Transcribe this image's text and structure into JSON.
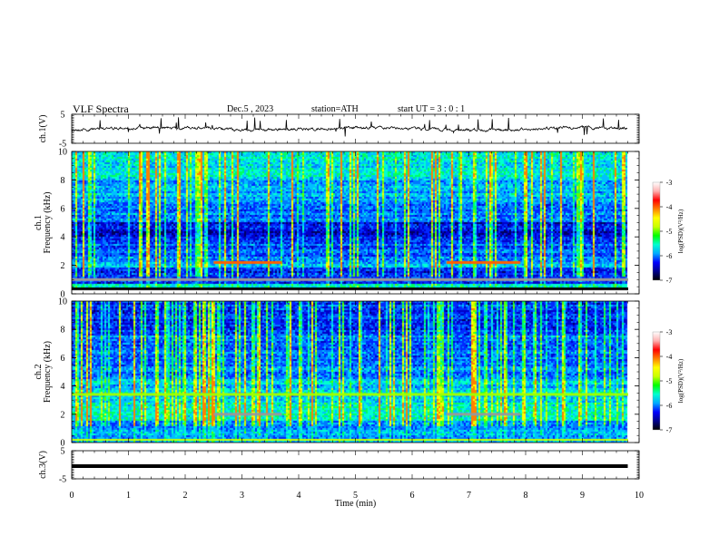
{
  "header": {
    "title": "VLF  Spectra",
    "date": "Dec.5  , 2023",
    "station": "station=ATH",
    "start": "start  UT  =    3  : 0   : 1"
  },
  "colorbar": {
    "label": "log(PSD)(V²/Hz)",
    "ticks": [
      -3,
      -4,
      -5,
      -6,
      -7
    ],
    "stops": [
      "#000000",
      "#00008b",
      "#0000ff",
      "#00aaff",
      "#00ffd0",
      "#00ff00",
      "#c8ff00",
      "#ffff00",
      "#ff8000",
      "#ff0000",
      "#ffb0b0",
      "#ffffff"
    ]
  },
  "chart_data": [
    {
      "type": "line",
      "name": "ch1-waveform",
      "ylabel": "ch.1(V)",
      "ylim": [
        -5,
        5
      ],
      "yticks": [
        5,
        -5
      ],
      "xlim": [
        0,
        10
      ],
      "level": 0,
      "duration_min": 9.8
    },
    {
      "type": "heatmap",
      "name": "ch1-spectrogram",
      "ylabel": "ch.1\nFrequency  (kHz)",
      "ylim": [
        0,
        10
      ],
      "yticks": [
        0,
        2,
        4,
        6,
        8,
        10
      ],
      "xlim": [
        0,
        10
      ],
      "duration_min": 9.8,
      "bands": [
        {
          "f": 2.2,
          "t0": 2.5,
          "t1": 3.7,
          "color": "#ff6000"
        },
        {
          "f": 2.2,
          "t0": 6.6,
          "t1": 7.9,
          "color": "#ff6000"
        },
        {
          "f": 1.0,
          "t0": 0.0,
          "t1": 9.8,
          "color": "#9a9a9a"
        }
      ]
    },
    {
      "type": "heatmap",
      "name": "ch2-spectrogram",
      "ylabel": "ch.2\nFrequency  (kHz)",
      "ylim": [
        0,
        10
      ],
      "yticks": [
        0,
        2,
        4,
        6,
        8,
        10
      ],
      "xlim": [
        0,
        10
      ],
      "duration_min": 9.8,
      "bands": [
        {
          "f": 2.0,
          "t0": 2.5,
          "t1": 3.7,
          "color": "#999999"
        },
        {
          "f": 2.0,
          "t0": 6.6,
          "t1": 7.9,
          "color": "#999999"
        },
        {
          "f": 3.4,
          "t0": 0.0,
          "t1": 9.8,
          "color": "#a0ff00"
        }
      ]
    },
    {
      "type": "line",
      "name": "ch3-waveform",
      "ylabel": "ch.3(V)",
      "ylim": [
        -5,
        5
      ],
      "yticks": [
        5,
        -5
      ],
      "xlim": [
        0,
        10
      ],
      "level": 0,
      "duration_min": 9.8
    }
  ],
  "xaxis": {
    "label": "Time  (min)",
    "ticks": [
      0,
      1,
      2,
      3,
      4,
      5,
      6,
      7,
      8,
      9,
      10
    ]
  }
}
